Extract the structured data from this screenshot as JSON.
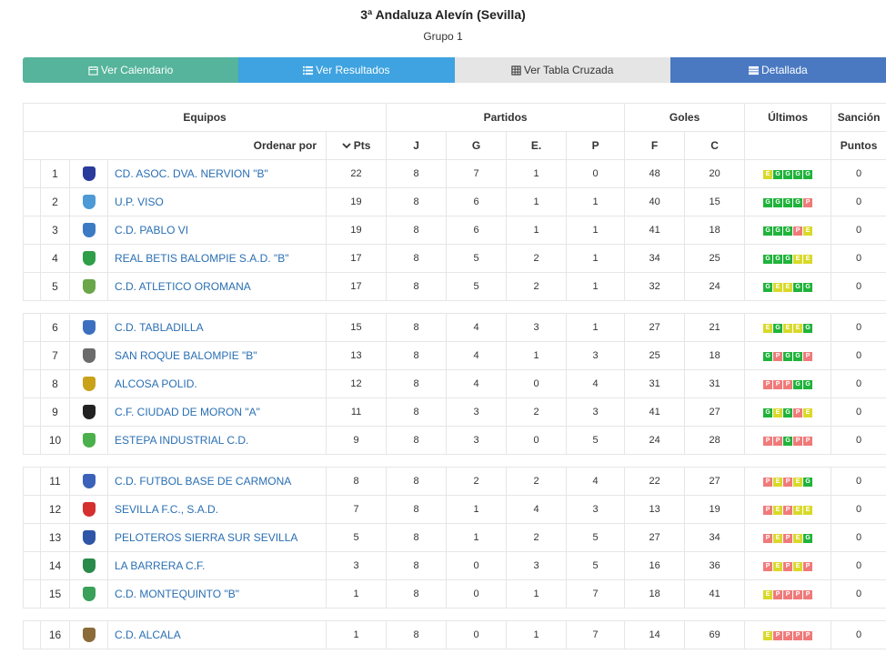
{
  "header": {
    "title": "3ª Andaluza Alevín (Sevilla)",
    "subtitle": "Grupo 1"
  },
  "tabs": [
    {
      "label": "Ver Calendario",
      "icon": "calendar-icon"
    },
    {
      "label": "Ver Resultados",
      "icon": "list-icon"
    },
    {
      "label": "Ver Tabla Cruzada",
      "icon": "grid-icon"
    },
    {
      "label": "Detallada",
      "icon": "detail-list-icon"
    }
  ],
  "colors": {
    "tab1": "#55b49b",
    "tab2": "#3ea3e0",
    "tab3": "#e5e5e5",
    "tab4": "#4a79c2",
    "win": "#20b33b",
    "draw": "#d9d92a",
    "loss": "#f07a7a",
    "link": "#2a6fb3"
  },
  "table": {
    "groups": {
      "equipos": "Equipos",
      "partidos": "Partidos",
      "goles": "Goles",
      "ultimos": "Últimos",
      "sancion": "Sanción"
    },
    "columns": {
      "ordenar": "Ordenar por",
      "pts": "Pts",
      "j": "J",
      "g": "G",
      "e": "E.",
      "p": "P",
      "f": "F",
      "c": "C",
      "puntos": "Puntos"
    },
    "rows": [
      {
        "pos": "1",
        "team": "CD. ASOC. DVA. NERVION \"B\"",
        "pts": "22",
        "j": "8",
        "g": "7",
        "e": "1",
        "p": "0",
        "f": "48",
        "c": "20",
        "form": [
          "E",
          "G",
          "G",
          "G",
          "G"
        ],
        "sancion": "0",
        "crest": "#2a3b9c"
      },
      {
        "pos": "2",
        "team": "U.P. VISO",
        "pts": "19",
        "j": "8",
        "g": "6",
        "e": "1",
        "p": "1",
        "f": "40",
        "c": "15",
        "form": [
          "G",
          "G",
          "G",
          "G",
          "P"
        ],
        "sancion": "0",
        "crest": "#4d9ad6"
      },
      {
        "pos": "3",
        "team": "C.D. PABLO VI",
        "pts": "19",
        "j": "8",
        "g": "6",
        "e": "1",
        "p": "1",
        "f": "41",
        "c": "18",
        "form": [
          "G",
          "G",
          "G",
          "P",
          "E"
        ],
        "sancion": "0",
        "crest": "#3b7bc4"
      },
      {
        "pos": "4",
        "team": "REAL BETIS BALOMPIE S.A.D. \"B\"",
        "pts": "17",
        "j": "8",
        "g": "5",
        "e": "2",
        "p": "1",
        "f": "34",
        "c": "25",
        "form": [
          "G",
          "G",
          "G",
          "E",
          "E"
        ],
        "sancion": "0",
        "crest": "#2f9e49"
      },
      {
        "pos": "5",
        "team": "C.D. ATLETICO OROMANA",
        "pts": "17",
        "j": "8",
        "g": "5",
        "e": "2",
        "p": "1",
        "f": "32",
        "c": "24",
        "form": [
          "G",
          "E",
          "E",
          "G",
          "G"
        ],
        "sancion": "0",
        "crest": "#6aa64a"
      },
      {
        "sep": true
      },
      {
        "pos": "6",
        "team": "C.D. TABLADILLA",
        "pts": "15",
        "j": "8",
        "g": "4",
        "e": "3",
        "p": "1",
        "f": "27",
        "c": "21",
        "form": [
          "E",
          "G",
          "E",
          "E",
          "G"
        ],
        "sancion": "0",
        "crest": "#3c6fc0"
      },
      {
        "pos": "7",
        "team": "SAN ROQUE BALOMPIE \"B\"",
        "pts": "13",
        "j": "8",
        "g": "4",
        "e": "1",
        "p": "3",
        "f": "25",
        "c": "18",
        "form": [
          "G",
          "P",
          "G",
          "G",
          "P"
        ],
        "sancion": "0",
        "crest": "#6b6b6b"
      },
      {
        "pos": "8",
        "team": "ALCOSA POLID.",
        "pts": "12",
        "j": "8",
        "g": "4",
        "e": "0",
        "p": "4",
        "f": "31",
        "c": "31",
        "form": [
          "P",
          "P",
          "P",
          "G",
          "G"
        ],
        "sancion": "0",
        "crest": "#c9a21a"
      },
      {
        "pos": "9",
        "team": "C.F. CIUDAD DE MORON \"A\"",
        "pts": "11",
        "j": "8",
        "g": "3",
        "e": "2",
        "p": "3",
        "f": "41",
        "c": "27",
        "form": [
          "G",
          "E",
          "G",
          "P",
          "E"
        ],
        "sancion": "0",
        "crest": "#222222"
      },
      {
        "pos": "10",
        "team": "ESTEPA INDUSTRIAL C.D.",
        "pts": "9",
        "j": "8",
        "g": "3",
        "e": "0",
        "p": "5",
        "f": "24",
        "c": "28",
        "form": [
          "P",
          "P",
          "G",
          "P",
          "P"
        ],
        "sancion": "0",
        "crest": "#4bb04b"
      },
      {
        "sep": true
      },
      {
        "pos": "11",
        "team": "C.D. FUTBOL BASE DE CARMONA",
        "pts": "8",
        "j": "8",
        "g": "2",
        "e": "2",
        "p": "4",
        "f": "22",
        "c": "27",
        "form": [
          "P",
          "E",
          "P",
          "E",
          "G"
        ],
        "sancion": "0",
        "crest": "#3a62b8"
      },
      {
        "pos": "12",
        "team": "SEVILLA F.C., S.A.D.",
        "pts": "7",
        "j": "8",
        "g": "1",
        "e": "4",
        "p": "3",
        "f": "13",
        "c": "19",
        "form": [
          "P",
          "E",
          "P",
          "E",
          "E"
        ],
        "sancion": "0",
        "crest": "#d43030"
      },
      {
        "pos": "13",
        "team": "PELOTEROS SIERRA SUR SEVILLA",
        "pts": "5",
        "j": "8",
        "g": "1",
        "e": "2",
        "p": "5",
        "f": "27",
        "c": "34",
        "form": [
          "P",
          "E",
          "P",
          "E",
          "G"
        ],
        "sancion": "0",
        "crest": "#2f55a8"
      },
      {
        "pos": "14",
        "team": "LA BARRERA C.F.",
        "pts": "3",
        "j": "8",
        "g": "0",
        "e": "3",
        "p": "5",
        "f": "16",
        "c": "36",
        "form": [
          "P",
          "E",
          "P",
          "E",
          "P"
        ],
        "sancion": "0",
        "crest": "#2a8a4a"
      },
      {
        "pos": "15",
        "team": "C.D. MONTEQUINTO \"B\"",
        "pts": "1",
        "j": "8",
        "g": "0",
        "e": "1",
        "p": "7",
        "f": "18",
        "c": "41",
        "form": [
          "E",
          "P",
          "P",
          "P",
          "P"
        ],
        "sancion": "0",
        "crest": "#3aa05a"
      },
      {
        "sep": true
      },
      {
        "pos": "16",
        "team": "C.D. ALCALA",
        "pts": "1",
        "j": "8",
        "g": "0",
        "e": "1",
        "p": "7",
        "f": "14",
        "c": "69",
        "form": [
          "E",
          "P",
          "P",
          "P",
          "P"
        ],
        "sancion": "0",
        "crest": "#8a6b3a"
      }
    ]
  }
}
